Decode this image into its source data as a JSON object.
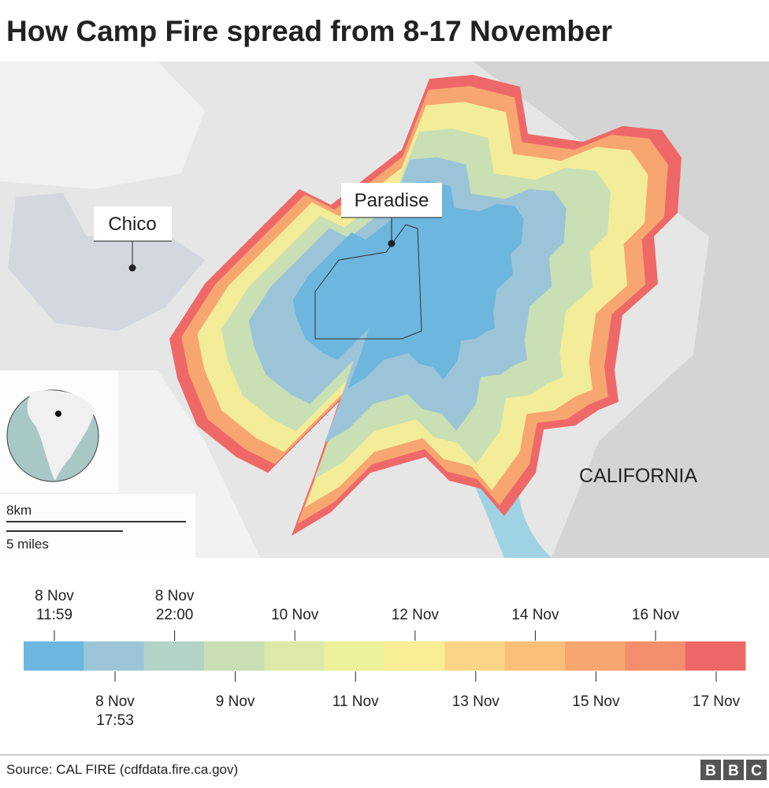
{
  "title": "How Camp Fire spread from 8-17 November",
  "map": {
    "labels": {
      "chico": "Chico",
      "paradise": "Paradise",
      "state": "CALIFORNIA"
    },
    "scale": {
      "km": "8km",
      "miles": "5 miles"
    }
  },
  "legend": {
    "colors": [
      "#6db6de",
      "#9cc4d8",
      "#b2d3c6",
      "#c9e0b5",
      "#dce9a9",
      "#eef19b",
      "#f8ee96",
      "#fbd587",
      "#fbbf79",
      "#f8a670",
      "#f48e6d",
      "#ef6868"
    ],
    "ticks_top": [
      {
        "lines": [
          "8 Nov",
          "11:59"
        ]
      },
      {
        "lines": [
          "8 Nov",
          "22:00"
        ]
      },
      {
        "lines": [
          "10 Nov"
        ]
      },
      {
        "lines": [
          "12 Nov"
        ]
      },
      {
        "lines": [
          "14 Nov"
        ]
      },
      {
        "lines": [
          "16 Nov"
        ]
      }
    ],
    "ticks_bottom": [
      {
        "lines": [
          "8 Nov",
          "17:53"
        ]
      },
      {
        "lines": [
          "9 Nov"
        ]
      },
      {
        "lines": [
          "11 Nov"
        ]
      },
      {
        "lines": [
          "13 Nov"
        ]
      },
      {
        "lines": [
          "15 Nov"
        ]
      },
      {
        "lines": [
          "17 Nov"
        ]
      }
    ]
  },
  "source": "Source: CAL FIRE (cdfdata.fire.ca.gov)",
  "logo": [
    "B",
    "B",
    "C"
  ]
}
